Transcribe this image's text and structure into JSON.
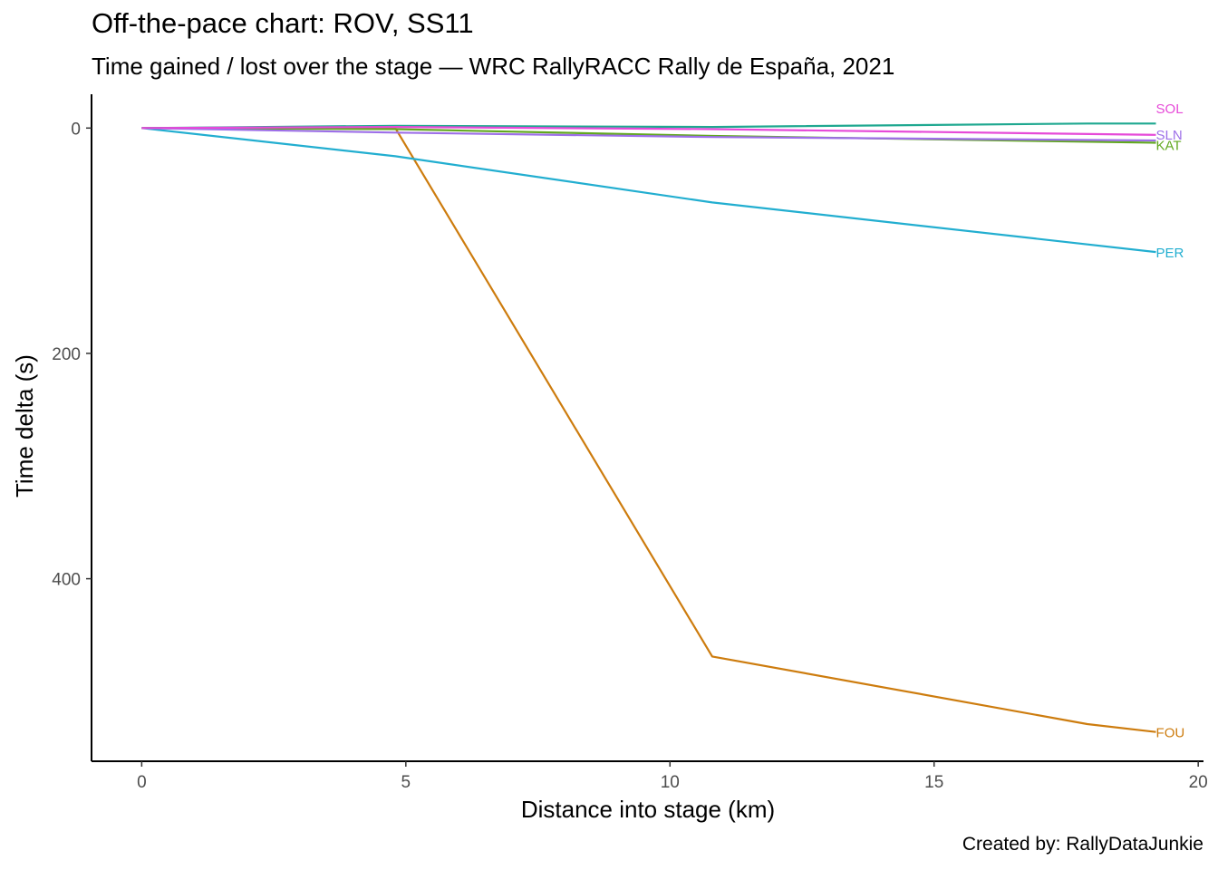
{
  "title": "Off-the-pace chart: ROV, SS11",
  "subtitle": "Time gained / lost over the stage — WRC RallyRACC Rally de España, 2021",
  "caption": "Created by: RallyDataJunkie",
  "chart_data": {
    "type": "line",
    "xlabel": "Distance into stage (km)",
    "ylabel": "Time delta (s)",
    "xlim": [
      -0.95,
      20.1
    ],
    "ylim": [
      -30,
      562
    ],
    "y_reversed": true,
    "grid": false,
    "x_ticks": [
      0,
      5,
      10,
      15,
      20
    ],
    "y_ticks": [
      0,
      200,
      400
    ],
    "series": [
      {
        "name": "FOU",
        "color": "#cd7c0e",
        "x": [
          0,
          4.8,
          10.8,
          17.9,
          19.2
        ],
        "y": [
          0,
          0,
          469,
          529,
          536
        ]
      },
      {
        "name": "PER",
        "color": "#22aed0",
        "x": [
          0,
          4.8,
          10.8,
          19.2
        ],
        "y": [
          0,
          25,
          66,
          110
        ]
      },
      {
        "name": "KAT",
        "color": "#61a81f",
        "x": [
          0,
          4.8,
          10.8,
          19.2
        ],
        "y": [
          0,
          1,
          7,
          13
        ]
      },
      {
        "name": "",
        "color": "#1fa890",
        "x": [
          0,
          4.8,
          10.8,
          17.9,
          19.2
        ],
        "y": [
          0,
          -2,
          -1,
          -4,
          -4
        ]
      },
      {
        "name": "SLN",
        "color": "#9d6fe8",
        "x": [
          0,
          4.8,
          10.8,
          19.2
        ],
        "y": [
          0,
          4,
          8,
          11
        ]
      },
      {
        "name": "SOL",
        "color": "#e64ad8",
        "x": [
          0,
          4.8,
          10.8,
          19.2
        ],
        "y": [
          0,
          -1,
          1,
          6
        ]
      }
    ]
  }
}
